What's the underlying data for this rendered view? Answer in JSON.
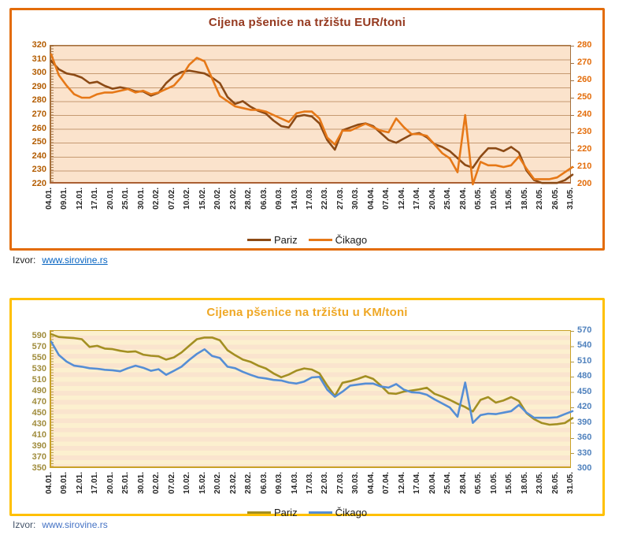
{
  "sources": [
    {
      "label": "Izvor:",
      "link": "www.sirovine.rs"
    },
    {
      "label": "Izvor:",
      "link": "www.sirovine.rs"
    }
  ],
  "chart_data": [
    {
      "type": "line",
      "title": "Cijena pšenice na tržištu EUR/toni",
      "title_color": "#95391F",
      "frame_color": "#E36C09",
      "plot_bg": "#FBE3CC",
      "grid": true,
      "legend_position": "bottom-center",
      "x_mapping": "values sampled at each category plus one midpoint between consecutive categories (69 points per series)",
      "categories": [
        "04.01.",
        "09.01.",
        "12.01.",
        "17.01.",
        "20.01.",
        "25.01.",
        "30.01.",
        "02.02.",
        "07.02.",
        "10.02.",
        "15.02.",
        "20.02.",
        "23.02.",
        "28.02.",
        "06.03.",
        "09.03.",
        "14.03.",
        "17.03.",
        "22.03.",
        "27.03.",
        "30.03.",
        "04.04.",
        "07.04.",
        "12.04.",
        "17.04.",
        "20.04.",
        "25.04.",
        "28.04.",
        "05.05.",
        "10.05.",
        "15.05.",
        "18.05.",
        "23.05.",
        "26.05.",
        "31.05."
      ],
      "left_axis": {
        "min": 220,
        "max": 320,
        "step": 10,
        "color": "#B35C00",
        "ticks": [
          "320",
          "310",
          "300",
          "290",
          "280",
          "270",
          "260",
          "250",
          "240",
          "230",
          "220"
        ]
      },
      "right_axis": {
        "min": 200,
        "max": 280,
        "step": 10,
        "color": "#E36C09",
        "ticks": [
          "280",
          "270",
          "260",
          "250",
          "240",
          "230",
          "220",
          "210",
          "200"
        ]
      },
      "series": [
        {
          "name": "Pariz",
          "axis": "left",
          "color": "#8C4A15",
          "values": [
            309,
            303,
            300,
            299,
            297,
            293,
            294,
            291,
            289,
            290,
            289,
            287,
            287,
            284,
            286,
            293,
            298,
            301,
            302,
            301,
            300,
            297,
            293,
            283,
            278,
            280,
            276,
            273,
            271,
            266,
            262,
            261,
            269,
            270,
            269,
            264,
            252,
            245,
            259,
            261,
            263,
            264,
            262,
            257,
            252,
            250,
            253,
            256,
            257,
            254,
            249,
            247,
            244,
            239,
            234,
            232,
            240,
            246,
            246,
            244,
            247,
            243,
            230,
            223,
            221,
            221,
            221,
            223,
            227
          ]
        },
        {
          "name": "Čikago",
          "axis": "right",
          "color": "#E67817",
          "values": [
            275,
            263,
            257,
            252,
            250,
            250,
            252,
            253,
            253,
            254,
            255,
            253,
            254,
            252,
            253,
            255,
            257,
            262,
            269,
            273,
            271,
            261,
            251,
            248,
            245,
            244,
            243,
            243,
            242,
            240,
            238,
            236,
            241,
            242,
            242,
            238,
            227,
            223,
            231,
            231,
            233,
            235,
            233,
            231,
            230,
            238,
            233,
            229,
            229,
            228,
            223,
            218,
            215,
            207,
            240,
            200,
            213,
            211,
            211,
            210,
            211,
            216,
            209,
            203,
            203,
            203,
            204,
            207,
            210
          ]
        }
      ]
    },
    {
      "type": "line",
      "title": "Cijena pšenice na tržištu u KM/toni",
      "title_color": "#EFA826",
      "frame_color": "#FFC000",
      "plot_bg_stripes": [
        "#FCF0CF",
        "#FAE4CE"
      ],
      "grid": false,
      "legend_position": "bottom-center",
      "x_mapping": "values sampled at each category plus one midpoint between consecutive categories (69 points per series)",
      "categories": [
        "04.01.",
        "09.01.",
        "12.01.",
        "17.01.",
        "20.01.",
        "25.01.",
        "30.01.",
        "02.02.",
        "07.02.",
        "10.02.",
        "15.02.",
        "20.02.",
        "23.02.",
        "28.02.",
        "06.03.",
        "09.03.",
        "14.03.",
        "17.03.",
        "22.03.",
        "27.03.",
        "30.03.",
        "04.04.",
        "07.04.",
        "12.04.",
        "17.04.",
        "20.04.",
        "25.04.",
        "28.04.",
        "05.05.",
        "10.05.",
        "15.05.",
        "18.05.",
        "23.05.",
        "26.05.",
        "31.05."
      ],
      "left_axis": {
        "min": 350,
        "max": 600,
        "step": 20,
        "color": "#A08C3C",
        "ticks": [
          "590",
          "570",
          "550",
          "530",
          "510",
          "490",
          "470",
          "450",
          "430",
          "410",
          "390",
          "370",
          "350"
        ]
      },
      "right_axis": {
        "min": 300,
        "max": 570,
        "step": 30,
        "color": "#4F81BD",
        "ticks": [
          "570",
          "540",
          "510",
          "480",
          "450",
          "420",
          "390",
          "360",
          "330",
          "300"
        ]
      },
      "series": [
        {
          "name": "Pariz",
          "axis": "left",
          "color": "#A38F22",
          "values": [
            594,
            589,
            588,
            587,
            585,
            571,
            573,
            568,
            567,
            564,
            562,
            563,
            557,
            555,
            554,
            548,
            552,
            561,
            573,
            585,
            588,
            588,
            583,
            565,
            556,
            548,
            544,
            537,
            532,
            523,
            516,
            521,
            528,
            532,
            530,
            523,
            501,
            482,
            506,
            509,
            513,
            518,
            513,
            501,
            487,
            486,
            490,
            492,
            494,
            497,
            486,
            481,
            475,
            468,
            462,
            454,
            475,
            480,
            470,
            474,
            480,
            473,
            451,
            440,
            433,
            430,
            431,
            433,
            442
          ]
        },
        {
          "name": "Čikago",
          "axis": "right",
          "color": "#558ED5",
          "values": [
            549,
            523,
            510,
            502,
            500,
            497,
            496,
            494,
            493,
            491,
            497,
            502,
            498,
            492,
            495,
            484,
            492,
            500,
            513,
            525,
            534,
            521,
            517,
            500,
            497,
            490,
            484,
            479,
            477,
            474,
            473,
            469,
            467,
            471,
            479,
            480,
            455,
            441,
            451,
            463,
            465,
            467,
            467,
            461,
            459,
            466,
            455,
            450,
            449,
            445,
            436,
            428,
            420,
            402,
            469,
            390,
            405,
            408,
            407,
            410,
            413,
            425,
            410,
            400,
            400,
            400,
            401,
            407,
            413
          ]
        }
      ]
    }
  ]
}
